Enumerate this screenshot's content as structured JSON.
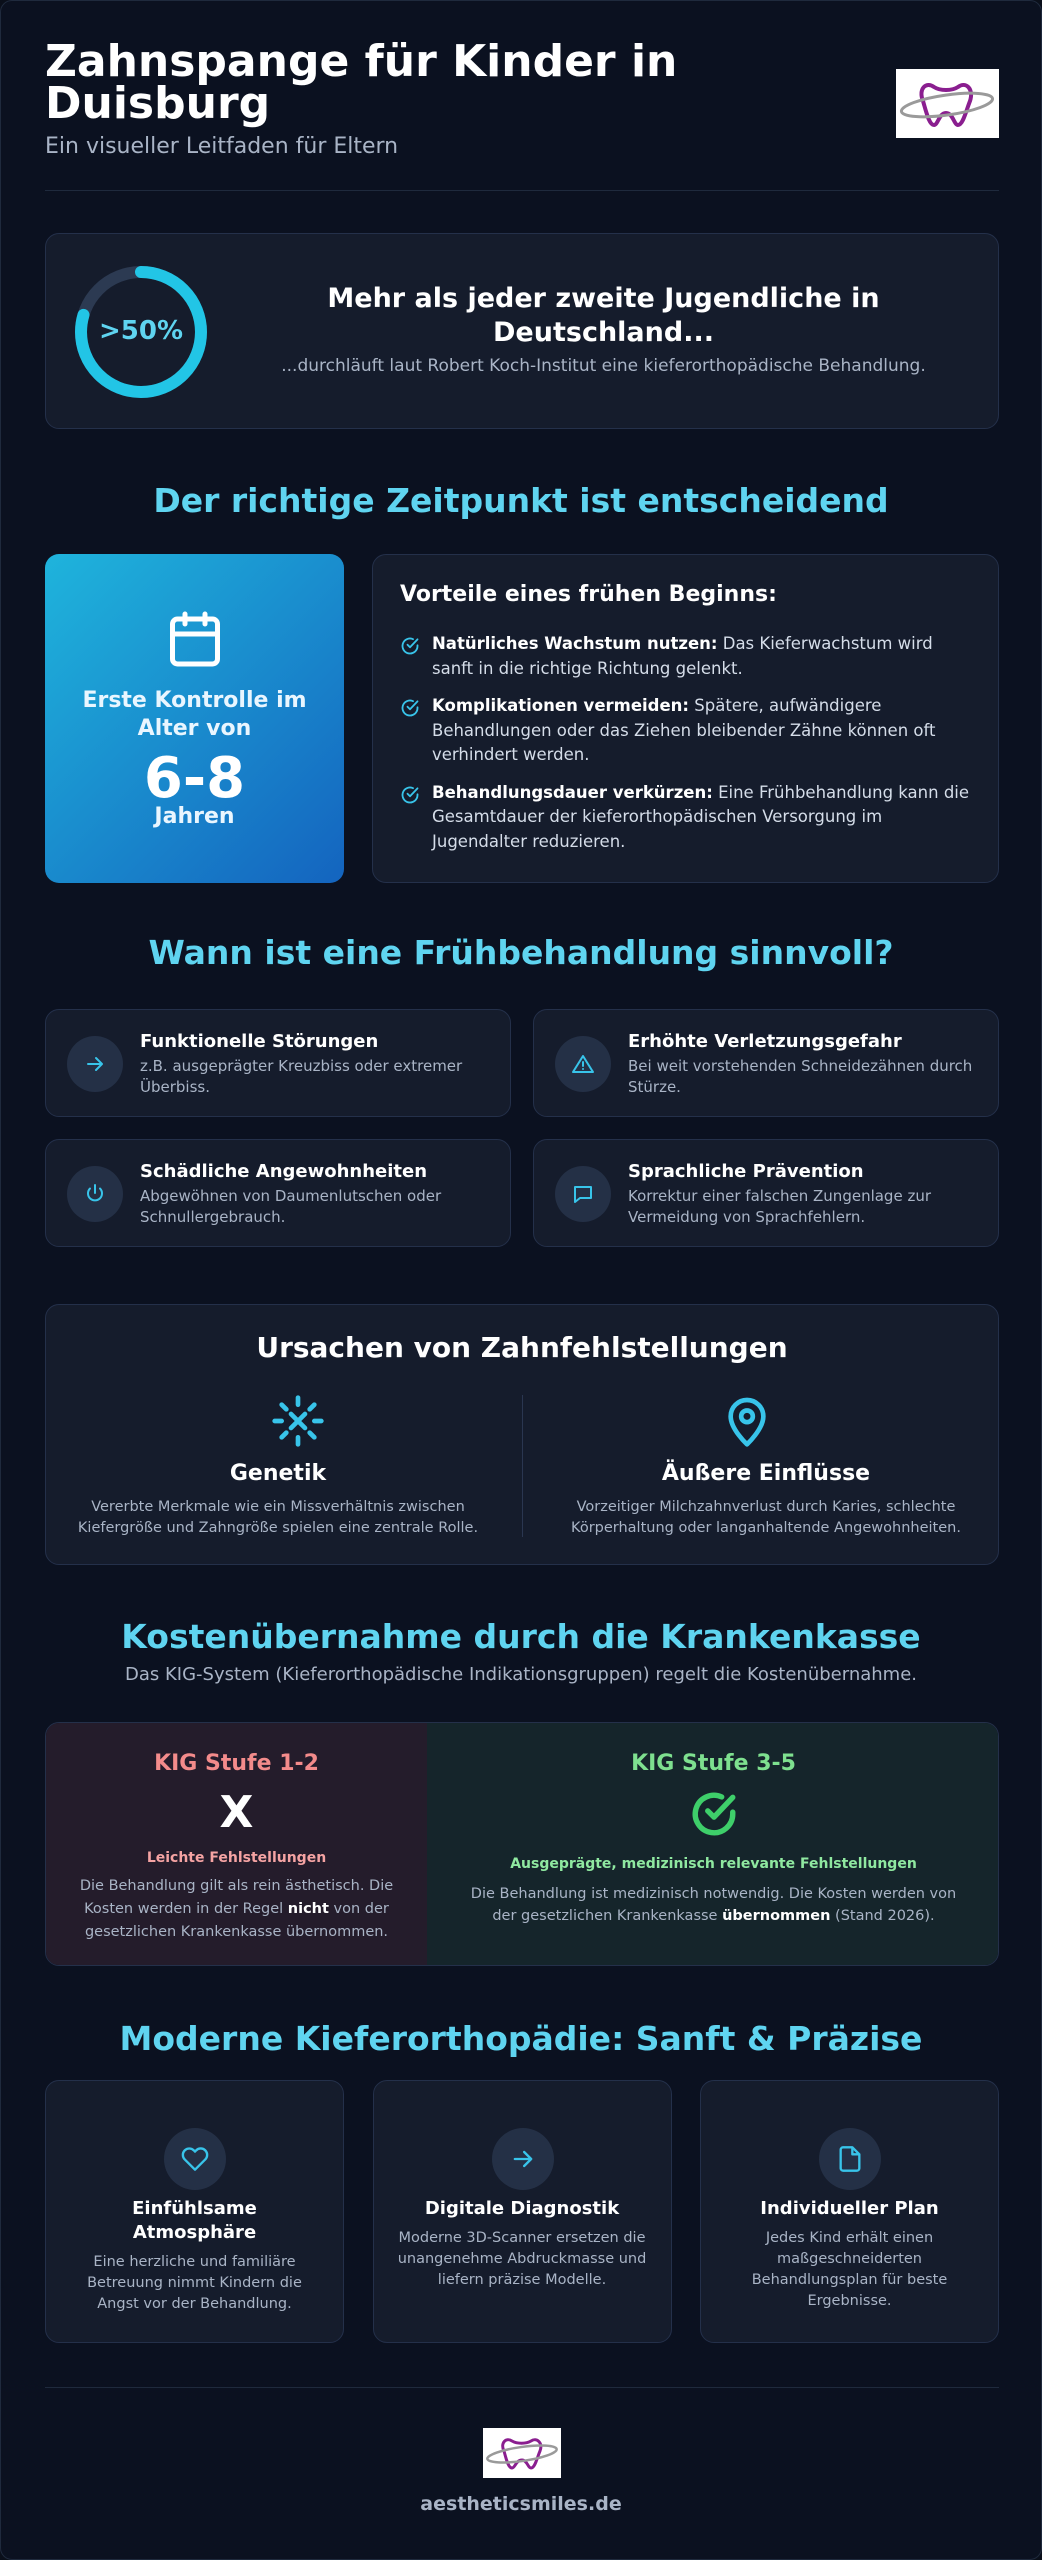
{
  "header": {
    "title": "Zahnspange für Kinder in Duisburg",
    "subtitle": "Ein visueller Leitfaden für Eltern"
  },
  "stat": {
    "value": ">50%",
    "heading": "Mehr als jeder zweite Jugendliche in Deutschland...",
    "text": "...durchläuft laut Robert Koch-Institut eine kieferorthopädische Behandlung."
  },
  "timing": {
    "heading": "Der richtige Zeitpunkt ist entscheidend",
    "highlight": {
      "label": "Erste Kontrolle im Alter von",
      "age": "6-8",
      "unit": "Jahren"
    },
    "benefits": {
      "title": "Vorteile eines frühen Beginns:",
      "items": [
        {
          "bold": "Natürliches Wachstum nutzen:",
          "text": " Das Kieferwachstum wird sanft in die richtige Richtung gelenkt."
        },
        {
          "bold": "Komplikationen vermeiden:",
          "text": " Spätere, aufwändigere Behandlungen oder das Ziehen bleibender Zähne können oft verhindert werden."
        },
        {
          "bold": "Behandlungsdauer verkürzen:",
          "text": " Eine Frühbehandlung kann die Gesamtdauer der kieferorthopädischen Versorgung im Jugendalter reduzieren."
        }
      ]
    }
  },
  "early": {
    "heading": "Wann ist eine Frühbehandlung sinnvoll?",
    "cards": [
      {
        "title": "Funktionelle Störungen",
        "text": "z.B. ausgeprägter Kreuzbiss oder extremer Überbiss."
      },
      {
        "title": "Erhöhte Verletzungsgefahr",
        "text": "Bei weit vorstehenden Schneidezähnen durch Stürze."
      },
      {
        "title": "Schädliche Angewohnheiten",
        "text": "Abgewöhnen von Daumenlutschen oder Schnullergebrauch."
      },
      {
        "title": "Sprachliche Prävention",
        "text": "Korrektur einer falschen Zungenlage zur Vermeidung von Sprachfehlern."
      }
    ]
  },
  "causes": {
    "title": "Ursachen von Zahnfehlstellungen",
    "items": [
      {
        "title": "Genetik",
        "text": "Vererbte Merkmale wie ein Missverhältnis zwischen Kiefergröße und Zahngröße spielen eine zentrale Rolle."
      },
      {
        "title": "Äußere Einflüsse",
        "text": "Vorzeitiger Milchzahnverlust durch Karies, schlechte Körperhaltung oder langanhaltende Angewohnheiten."
      }
    ]
  },
  "costs": {
    "heading": "Kostenübernahme durch die Krankenkasse",
    "subtitle": "Das KIG-System (Kieferorthopädische Indikationsgruppen) regelt die Kostenübernahme.",
    "levels": [
      {
        "title": "KIG Stufe 1-2",
        "symbol": "X",
        "label": "Leichte Fehlstellungen",
        "text_before": "Die Behandlung gilt als rein ästhetisch. Die Kosten werden in der Regel ",
        "text_bold": "nicht",
        "text_after": " von der gesetzlichen Krankenkasse übernommen."
      },
      {
        "title": "KIG Stufe 3-5",
        "label": "Ausgeprägte, medizinisch relevante Fehlstellungen",
        "text_before": "Die Behandlung ist medizinisch notwendig. Die Kosten werden von der gesetzlichen Krankenkasse ",
        "text_bold": "übernommen",
        "text_after": " (Stand 2026)."
      }
    ]
  },
  "modern": {
    "heading": "Moderne Kieferorthopädie: Sanft & Präzise",
    "cards": [
      {
        "title": "Einfühlsame Atmosphäre",
        "text": "Eine herzliche und familiäre Betreuung nimmt Kindern die Angst vor der Behandlung."
      },
      {
        "title": "Digitale Diagnostik",
        "text": "Moderne 3D-Scanner ersetzen die unangenehme Abdruckmasse und liefern präzise Modelle."
      },
      {
        "title": "Individueller Plan",
        "text": "Jedes Kind erhält einen maßgeschneiderten Behandlungsplan für beste Ergebnisse."
      }
    ]
  },
  "footer": {
    "site": "aestheticsmiles.de"
  }
}
